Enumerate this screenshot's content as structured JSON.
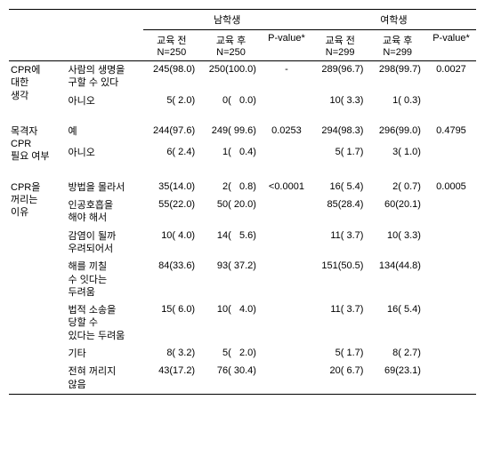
{
  "headers": {
    "group_male": "남학생",
    "group_female": "여학생",
    "pre_label": "교육 전",
    "post_label": "교육 후",
    "male_n": "N=250",
    "female_n": "N=299",
    "pvalue": "P-value*"
  },
  "sections": [
    {
      "label": "CPR에\n대한\n생각",
      "rows": [
        {
          "sub": "사람의 생명을\n구할 수 있다",
          "m_pre": "245(98.0)",
          "m_post": "250(100.0)",
          "m_p": "-",
          "f_pre": "289(96.7)",
          "f_post": "298(99.7)",
          "f_p": "0.0027"
        },
        {
          "sub": "아니오",
          "m_pre": "5( 2.0)",
          "m_post": "0(   0.0)",
          "m_p": "",
          "f_pre": "10( 3.3)",
          "f_post": "1( 0.3)",
          "f_p": ""
        }
      ]
    },
    {
      "label": "목격자\nCPR\n필요 여부",
      "rows": [
        {
          "sub": "예",
          "m_pre": "244(97.6)",
          "m_post": "249( 99.6)",
          "m_p": "0.0253",
          "f_pre": "294(98.3)",
          "f_post": "296(99.0)",
          "f_p": "0.4795"
        },
        {
          "sub": "아니오",
          "m_pre": "6( 2.4)",
          "m_post": "1(   0.4)",
          "m_p": "",
          "f_pre": "5( 1.7)",
          "f_post": "3( 1.0)",
          "f_p": ""
        }
      ]
    },
    {
      "label": "CPR을\n꺼리는\n이유",
      "rows": [
        {
          "sub": "방법을 몰라서",
          "m_pre": "35(14.0)",
          "m_post": "2(   0.8)",
          "m_p": "<0.0001",
          "f_pre": "16( 5.4)",
          "f_post": "2( 0.7)",
          "f_p": "0.0005"
        },
        {
          "sub": "인공호흡을\n해야 해서",
          "m_pre": "55(22.0)",
          "m_post": "50( 20.0)",
          "m_p": "",
          "f_pre": "85(28.4)",
          "f_post": "60(20.1)",
          "f_p": ""
        },
        {
          "sub": "감염이 될까\n우려되어서",
          "m_pre": "10( 4.0)",
          "m_post": "14(   5.6)",
          "m_p": "",
          "f_pre": "11( 3.7)",
          "f_post": "10( 3.3)",
          "f_p": ""
        },
        {
          "sub": "해를 끼칠\n수 잇다는\n두려움",
          "m_pre": "84(33.6)",
          "m_post": "93( 37.2)",
          "m_p": "",
          "f_pre": "151(50.5)",
          "f_post": "134(44.8)",
          "f_p": ""
        },
        {
          "sub": "법적 소송을\n당할 수\n있다는 두려움",
          "m_pre": "15( 6.0)",
          "m_post": "10(   4.0)",
          "m_p": "",
          "f_pre": "11( 3.7)",
          "f_post": "16( 5.4)",
          "f_p": ""
        },
        {
          "sub": "기타",
          "m_pre": "8( 3.2)",
          "m_post": "5(   2.0)",
          "m_p": "",
          "f_pre": "5( 1.7)",
          "f_post": "8( 2.7)",
          "f_p": ""
        },
        {
          "sub": "전혀 꺼리지\n않음",
          "m_pre": "43(17.2)",
          "m_post": "76( 30.4)",
          "m_p": "",
          "f_pre": "20( 6.7)",
          "f_post": "69(23.1)",
          "f_p": ""
        }
      ]
    }
  ]
}
